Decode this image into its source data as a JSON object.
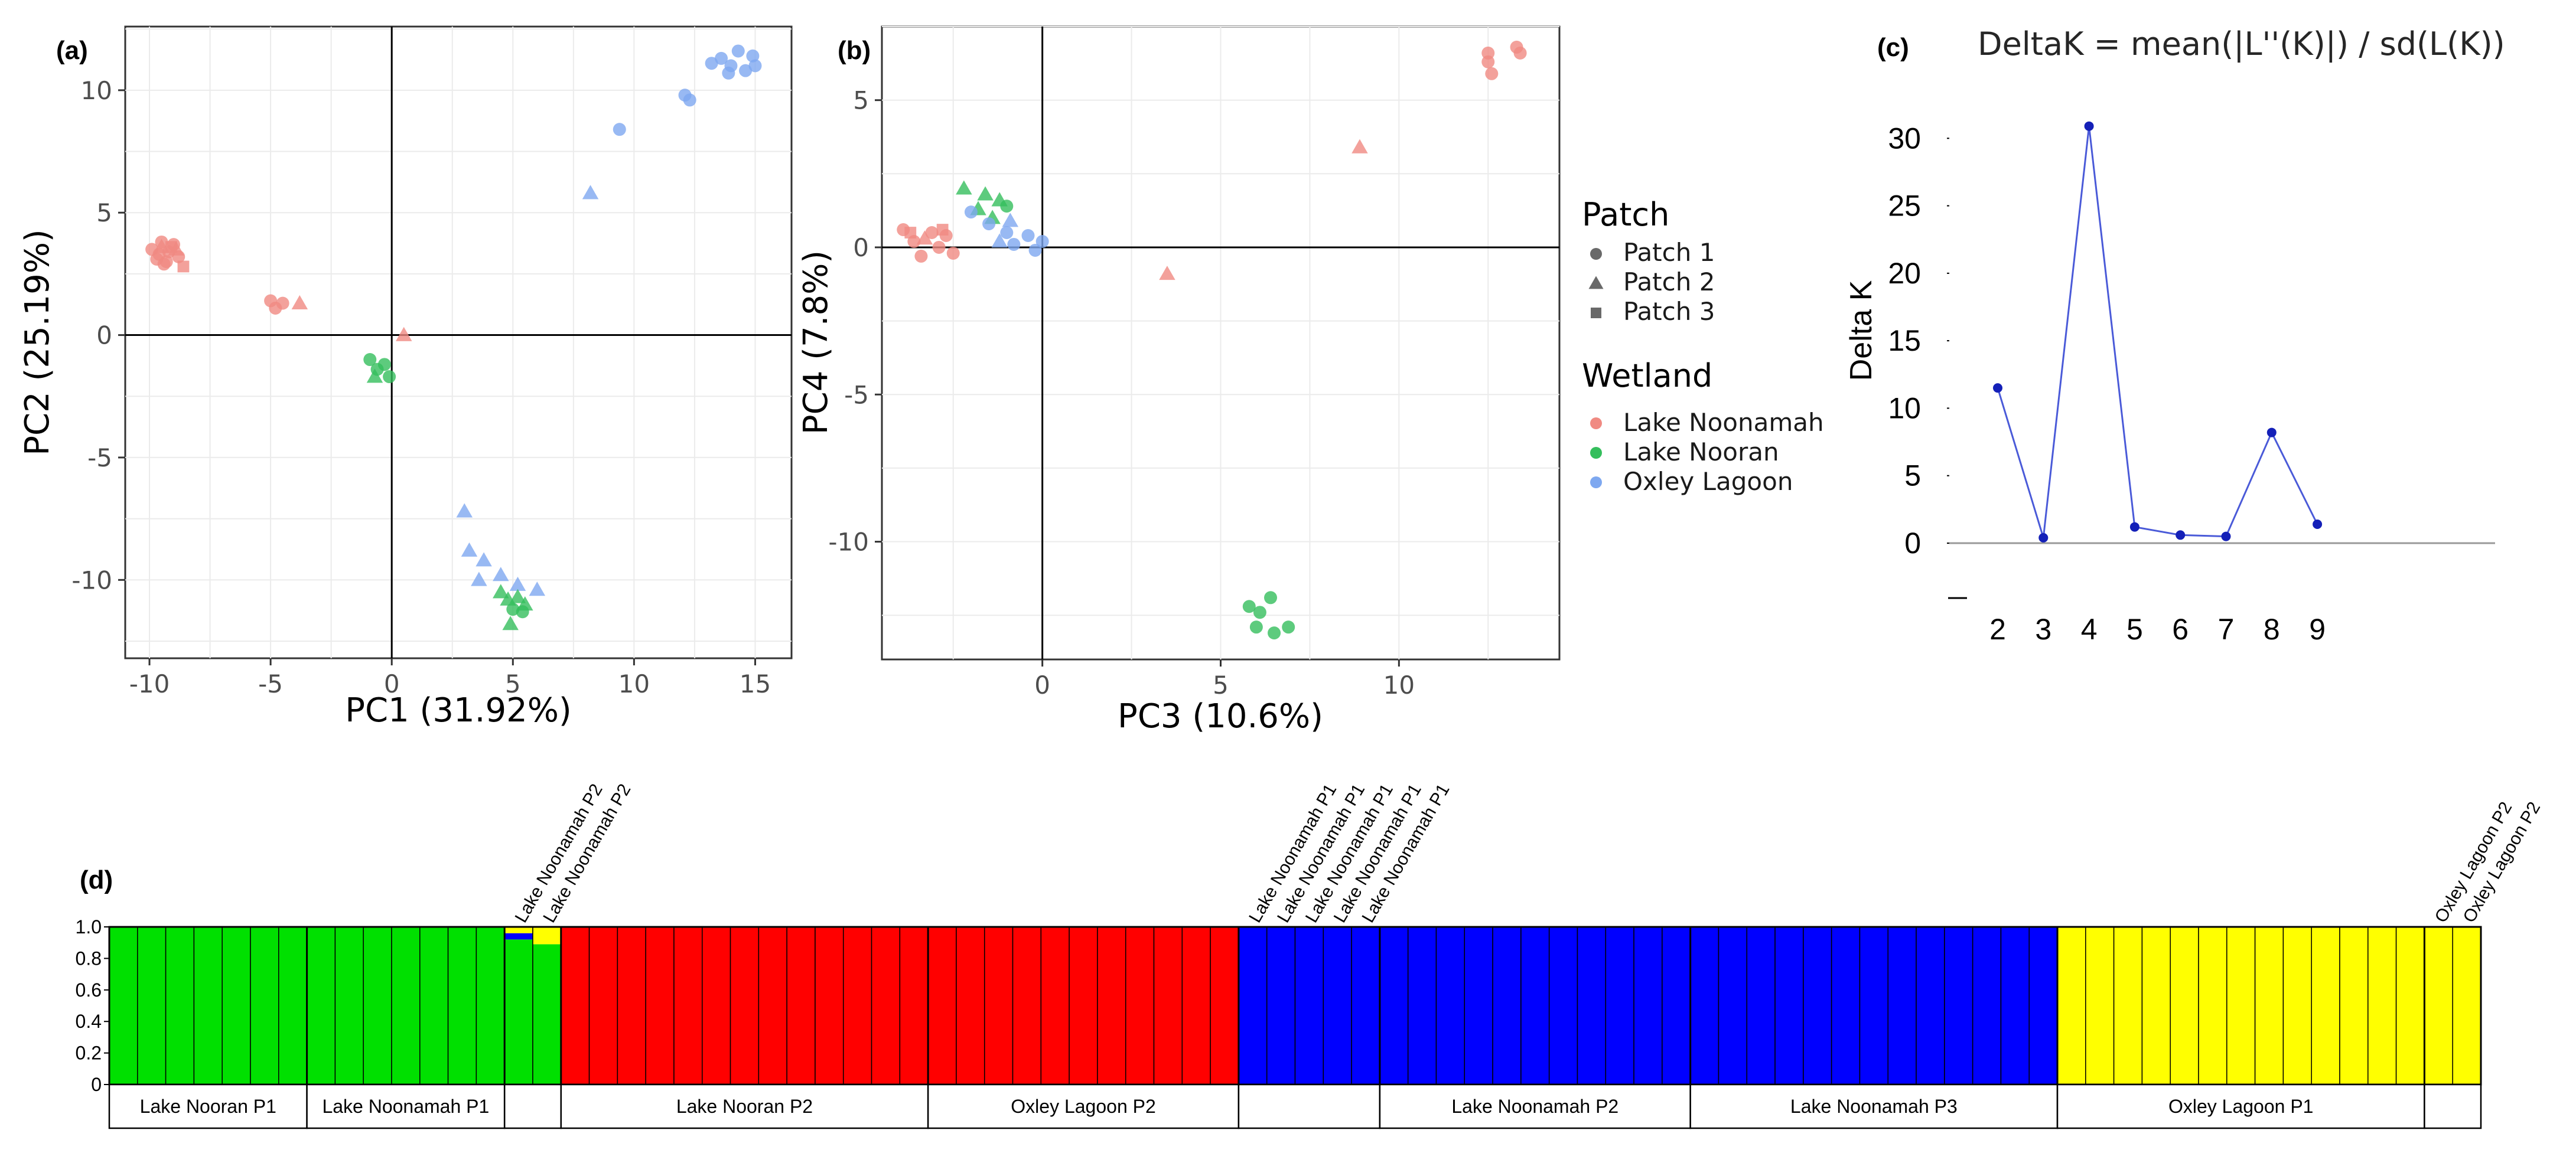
{
  "chart_data": [
    {
      "panel": "(a)",
      "type": "scatter",
      "xlabel": "PC1 (31.92%)",
      "ylabel": "PC2 (25.19%)",
      "xlim": [
        -11,
        16.5
      ],
      "ylim": [
        -13.2,
        12.6
      ],
      "xticks": [
        -10,
        -5,
        0,
        5,
        10,
        15
      ],
      "yticks": [
        -10,
        -5,
        0,
        5,
        10
      ],
      "points": [
        {
          "x": -9.9,
          "y": 3.5,
          "wetland": "Lake Noonamah",
          "patch": "Patch 1"
        },
        {
          "x": -9.7,
          "y": 3.1,
          "wetland": "Lake Noonamah",
          "patch": "Patch 1"
        },
        {
          "x": -9.5,
          "y": 3.8,
          "wetland": "Lake Noonamah",
          "patch": "Patch 1"
        },
        {
          "x": -9.4,
          "y": 2.9,
          "wetland": "Lake Noonamah",
          "patch": "Patch 1"
        },
        {
          "x": -9.2,
          "y": 3.4,
          "wetland": "Lake Noonamah",
          "patch": "Patch 1"
        },
        {
          "x": -9.0,
          "y": 3.7,
          "wetland": "Lake Noonamah",
          "patch": "Patch 1"
        },
        {
          "x": -8.8,
          "y": 3.2,
          "wetland": "Lake Noonamah",
          "patch": "Patch 1"
        },
        {
          "x": -9.6,
          "y": 3.3,
          "wetland": "Lake Noonamah",
          "patch": "Patch 1"
        },
        {
          "x": -9.3,
          "y": 3.0,
          "wetland": "Lake Noonamah",
          "patch": "Patch 1"
        },
        {
          "x": -8.9,
          "y": 3.5,
          "wetland": "Lake Noonamah",
          "patch": "Patch 2"
        },
        {
          "x": -9.5,
          "y": 3.6,
          "wetland": "Lake Noonamah",
          "patch": "Patch 2"
        },
        {
          "x": -8.6,
          "y": 2.8,
          "wetland": "Lake Noonamah",
          "patch": "Patch 3"
        },
        {
          "x": -9.1,
          "y": 3.6,
          "wetland": "Lake Noonamah",
          "patch": "Patch 3"
        },
        {
          "x": -5.0,
          "y": 1.4,
          "wetland": "Lake Noonamah",
          "patch": "Patch 1"
        },
        {
          "x": -4.8,
          "y": 1.1,
          "wetland": "Lake Noonamah",
          "patch": "Patch 1"
        },
        {
          "x": -4.5,
          "y": 1.3,
          "wetland": "Lake Noonamah",
          "patch": "Patch 1"
        },
        {
          "x": -3.8,
          "y": 1.3,
          "wetland": "Lake Noonamah",
          "patch": "Patch 2"
        },
        {
          "x": 0.5,
          "y": 0.0,
          "wetland": "Lake Noonamah",
          "patch": "Patch 2"
        },
        {
          "x": -0.9,
          "y": -1.0,
          "wetland": "Lake Nooran",
          "patch": "Patch 1"
        },
        {
          "x": -0.6,
          "y": -1.4,
          "wetland": "Lake Nooran",
          "patch": "Patch 1"
        },
        {
          "x": -0.3,
          "y": -1.2,
          "wetland": "Lake Nooran",
          "patch": "Patch 1"
        },
        {
          "x": -0.1,
          "y": -1.7,
          "wetland": "Lake Nooran",
          "patch": "Patch 1"
        },
        {
          "x": -0.7,
          "y": -1.7,
          "wetland": "Lake Nooran",
          "patch": "Patch 2"
        },
        {
          "x": 3.0,
          "y": -7.2,
          "wetland": "Oxley Lagoon",
          "patch": "Patch 2"
        },
        {
          "x": 3.2,
          "y": -8.8,
          "wetland": "Oxley Lagoon",
          "patch": "Patch 2"
        },
        {
          "x": 3.8,
          "y": -9.2,
          "wetland": "Oxley Lagoon",
          "patch": "Patch 2"
        },
        {
          "x": 3.6,
          "y": -10.0,
          "wetland": "Oxley Lagoon",
          "patch": "Patch 2"
        },
        {
          "x": 4.5,
          "y": -9.8,
          "wetland": "Oxley Lagoon",
          "patch": "Patch 2"
        },
        {
          "x": 5.2,
          "y": -10.2,
          "wetland": "Oxley Lagoon",
          "patch": "Patch 2"
        },
        {
          "x": 6.0,
          "y": -10.4,
          "wetland": "Oxley Lagoon",
          "patch": "Patch 2"
        },
        {
          "x": 4.5,
          "y": -10.5,
          "wetland": "Lake Nooran",
          "patch": "Patch 2"
        },
        {
          "x": 4.8,
          "y": -10.8,
          "wetland": "Lake Nooran",
          "patch": "Patch 2"
        },
        {
          "x": 5.2,
          "y": -10.7,
          "wetland": "Lake Nooran",
          "patch": "Patch 2"
        },
        {
          "x": 5.5,
          "y": -11.0,
          "wetland": "Lake Nooran",
          "patch": "Patch 2"
        },
        {
          "x": 4.9,
          "y": -11.8,
          "wetland": "Lake Nooran",
          "patch": "Patch 2"
        },
        {
          "x": 5.0,
          "y": -11.2,
          "wetland": "Lake Nooran",
          "patch": "Patch 1"
        },
        {
          "x": 5.4,
          "y": -11.3,
          "wetland": "Lake Nooran",
          "patch": "Patch 1"
        },
        {
          "x": 8.2,
          "y": 5.8,
          "wetland": "Oxley Lagoon",
          "patch": "Patch 2"
        },
        {
          "x": 9.4,
          "y": 8.4,
          "wetland": "Oxley Lagoon",
          "patch": "Patch 1"
        },
        {
          "x": 12.1,
          "y": 9.8,
          "wetland": "Oxley Lagoon",
          "patch": "Patch 1"
        },
        {
          "x": 12.3,
          "y": 9.6,
          "wetland": "Oxley Lagoon",
          "patch": "Patch 1"
        },
        {
          "x": 13.2,
          "y": 11.1,
          "wetland": "Oxley Lagoon",
          "patch": "Patch 1"
        },
        {
          "x": 13.6,
          "y": 11.3,
          "wetland": "Oxley Lagoon",
          "patch": "Patch 1"
        },
        {
          "x": 14.0,
          "y": 11.0,
          "wetland": "Oxley Lagoon",
          "patch": "Patch 1"
        },
        {
          "x": 14.3,
          "y": 11.6,
          "wetland": "Oxley Lagoon",
          "patch": "Patch 1"
        },
        {
          "x": 14.6,
          "y": 10.8,
          "wetland": "Oxley Lagoon",
          "patch": "Patch 1"
        },
        {
          "x": 14.9,
          "y": 11.4,
          "wetland": "Oxley Lagoon",
          "patch": "Patch 1"
        },
        {
          "x": 15.0,
          "y": 11.0,
          "wetland": "Oxley Lagoon",
          "patch": "Patch 1"
        },
        {
          "x": 13.9,
          "y": 10.7,
          "wetland": "Oxley Lagoon",
          "patch": "Patch 1"
        }
      ]
    },
    {
      "panel": "(b)",
      "type": "scatter",
      "xlabel": "PC3 (10.6%)",
      "ylabel": "PC4 (7.8%)",
      "xlim": [
        -4.5,
        14.5
      ],
      "ylim": [
        -14.0,
        7.5
      ],
      "xticks": [
        0,
        5,
        10
      ],
      "yticks": [
        -10,
        -5,
        0,
        5
      ],
      "points": [
        {
          "x": -3.9,
          "y": 0.6,
          "wetland": "Lake Noonamah",
          "patch": "Patch 1"
        },
        {
          "x": -3.6,
          "y": 0.2,
          "wetland": "Lake Noonamah",
          "patch": "Patch 1"
        },
        {
          "x": -3.4,
          "y": -0.3,
          "wetland": "Lake Noonamah",
          "patch": "Patch 1"
        },
        {
          "x": -3.1,
          "y": 0.5,
          "wetland": "Lake Noonamah",
          "patch": "Patch 1"
        },
        {
          "x": -2.9,
          "y": 0.0,
          "wetland": "Lake Noonamah",
          "patch": "Patch 1"
        },
        {
          "x": -2.7,
          "y": 0.4,
          "wetland": "Lake Noonamah",
          "patch": "Patch 1"
        },
        {
          "x": -2.5,
          "y": -0.2,
          "wetland": "Lake Noonamah",
          "patch": "Patch 1"
        },
        {
          "x": -3.3,
          "y": 0.3,
          "wetland": "Lake Noonamah",
          "patch": "Patch 2"
        },
        {
          "x": -2.8,
          "y": 0.6,
          "wetland": "Lake Noonamah",
          "patch": "Patch 3"
        },
        {
          "x": -3.7,
          "y": 0.5,
          "wetland": "Lake Noonamah",
          "patch": "Patch 3"
        },
        {
          "x": -1.6,
          "y": 1.8,
          "wetland": "Lake Nooran",
          "patch": "Patch 2"
        },
        {
          "x": -1.2,
          "y": 1.6,
          "wetland": "Lake Nooran",
          "patch": "Patch 2"
        },
        {
          "x": -1.4,
          "y": 1.0,
          "wetland": "Lake Nooran",
          "patch": "Patch 2"
        },
        {
          "x": -1.8,
          "y": 1.3,
          "wetland": "Lake Nooran",
          "patch": "Patch 2"
        },
        {
          "x": -2.2,
          "y": 2.0,
          "wetland": "Lake Nooran",
          "patch": "Patch 2"
        },
        {
          "x": -1.0,
          "y": 1.4,
          "wetland": "Lake Nooran",
          "patch": "Patch 1"
        },
        {
          "x": -2.0,
          "y": 1.2,
          "wetland": "Oxley Lagoon",
          "patch": "Patch 1"
        },
        {
          "x": -1.5,
          "y": 0.8,
          "wetland": "Oxley Lagoon",
          "patch": "Patch 1"
        },
        {
          "x": -1.0,
          "y": 0.5,
          "wetland": "Oxley Lagoon",
          "patch": "Patch 1"
        },
        {
          "x": -0.8,
          "y": 0.1,
          "wetland": "Oxley Lagoon",
          "patch": "Patch 1"
        },
        {
          "x": -0.4,
          "y": 0.4,
          "wetland": "Oxley Lagoon",
          "patch": "Patch 1"
        },
        {
          "x": -0.2,
          "y": -0.1,
          "wetland": "Oxley Lagoon",
          "patch": "Patch 1"
        },
        {
          "x": 0.0,
          "y": 0.2,
          "wetland": "Oxley Lagoon",
          "patch": "Patch 1"
        },
        {
          "x": -1.2,
          "y": 0.2,
          "wetland": "Oxley Lagoon",
          "patch": "Patch 2"
        },
        {
          "x": -0.9,
          "y": 0.9,
          "wetland": "Oxley Lagoon",
          "patch": "Patch 2"
        },
        {
          "x": 3.5,
          "y": -0.9,
          "wetland": "Lake Noonamah",
          "patch": "Patch 2"
        },
        {
          "x": 8.9,
          "y": 3.4,
          "wetland": "Lake Noonamah",
          "patch": "Patch 2"
        },
        {
          "x": 12.5,
          "y": 6.6,
          "wetland": "Lake Noonamah",
          "patch": "Patch 1"
        },
        {
          "x": 12.5,
          "y": 6.3,
          "wetland": "Lake Noonamah",
          "patch": "Patch 1"
        },
        {
          "x": 12.6,
          "y": 5.9,
          "wetland": "Lake Noonamah",
          "patch": "Patch 1"
        },
        {
          "x": 13.3,
          "y": 6.8,
          "wetland": "Lake Noonamah",
          "patch": "Patch 1"
        },
        {
          "x": 13.4,
          "y": 6.6,
          "wetland": "Lake Noonamah",
          "patch": "Patch 1"
        },
        {
          "x": 5.8,
          "y": -12.2,
          "wetland": "Lake Nooran",
          "patch": "Patch 1"
        },
        {
          "x": 6.1,
          "y": -12.4,
          "wetland": "Lake Nooran",
          "patch": "Patch 1"
        },
        {
          "x": 6.4,
          "y": -11.9,
          "wetland": "Lake Nooran",
          "patch": "Patch 1"
        },
        {
          "x": 6.0,
          "y": -12.9,
          "wetland": "Lake Nooran",
          "patch": "Patch 1"
        },
        {
          "x": 6.5,
          "y": -13.1,
          "wetland": "Lake Nooran",
          "patch": "Patch 1"
        },
        {
          "x": 6.9,
          "y": -12.9,
          "wetland": "Lake Nooran",
          "patch": "Patch 1"
        }
      ]
    },
    {
      "panel": "(c)",
      "type": "line",
      "title": "DeltaK = mean(|L''(K)|) / sd(L(K))",
      "xlabel": "",
      "ylabel": "Delta K",
      "x": [
        2,
        3,
        4,
        5,
        6,
        7,
        8,
        9
      ],
      "values": [
        11.5,
        0.4,
        30.9,
        1.2,
        0.6,
        0.5,
        8.2,
        1.4
      ],
      "ylim": [
        -3.5,
        35
      ],
      "yticks": [
        0,
        5,
        10,
        15,
        20,
        25,
        30
      ]
    },
    {
      "panel": "(d)",
      "type": "bar",
      "stacked": true,
      "ylim": [
        0,
        1
      ],
      "yticks": [
        "0",
        "0.2",
        "0.4",
        "0.6",
        "0.8",
        "1.0"
      ],
      "series_names": [
        "green",
        "red",
        "blue",
        "yellow"
      ],
      "cluster_colors": [
        "#00e000",
        "#ff0000",
        "#0000ff",
        "#ffff00"
      ],
      "groups": [
        {
          "label": "Lake Nooran P1",
          "n": 7,
          "cluster": 0
        },
        {
          "label": "Lake Noonamah P1",
          "n": 7,
          "cluster": 0
        },
        {
          "label": "",
          "n": 2,
          "cluster": 0,
          "mixed": [
            [
              0.92,
              0.0,
              0.04,
              0.04
            ],
            [
              0.89,
              0.0,
              0.0,
              0.11
            ]
          ]
        },
        {
          "label": "Lake Nooran P2",
          "n": 13,
          "cluster": 1
        },
        {
          "label": "Oxley Lagoon P2",
          "n": 11,
          "cluster": 1
        },
        {
          "label": "",
          "n": 5,
          "cluster": 2
        },
        {
          "label": "Lake Noonamah P2",
          "n": 11,
          "cluster": 2
        },
        {
          "label": "Lake Noonamah P3",
          "n": 13,
          "cluster": 2
        },
        {
          "label": "Oxley Lagoon P1",
          "n": 13,
          "cluster": 3
        },
        {
          "label": "",
          "n": 2,
          "cluster": 3
        }
      ],
      "rotated_labels": [
        {
          "text": "Lake Noonamah P2",
          "group": 2,
          "index": 0
        },
        {
          "text": "Lake Noonamah P2",
          "group": 2,
          "index": 1
        },
        {
          "text": "Lake Noonamah P1",
          "group": 5,
          "index": 0
        },
        {
          "text": "Lake Noonamah P1",
          "group": 5,
          "index": 1
        },
        {
          "text": "Lake Noonamah P1",
          "group": 5,
          "index": 2
        },
        {
          "text": "Lake Noonamah P1",
          "group": 5,
          "index": 3
        },
        {
          "text": "Lake Noonamah P1",
          "group": 5,
          "index": 4
        },
        {
          "text": "Oxley Lagoon P2",
          "group": 9,
          "index": 0
        },
        {
          "text": "Oxley Lagoon P2",
          "group": 9,
          "index": 1
        }
      ]
    }
  ],
  "legend": {
    "patch_title": "Patch",
    "patch_items": [
      {
        "label": "Patch 1",
        "shape": "circle"
      },
      {
        "label": "Patch 2",
        "shape": "triangle"
      },
      {
        "label": "Patch 3",
        "shape": "square"
      }
    ],
    "wetland_title": "Wetland",
    "wetland_items": [
      {
        "label": "Lake Noonamah",
        "color": "#f08a82"
      },
      {
        "label": "Lake Nooran",
        "color": "#34be5c"
      },
      {
        "label": "Oxley Lagoon",
        "color": "#7ea8f0"
      }
    ]
  }
}
